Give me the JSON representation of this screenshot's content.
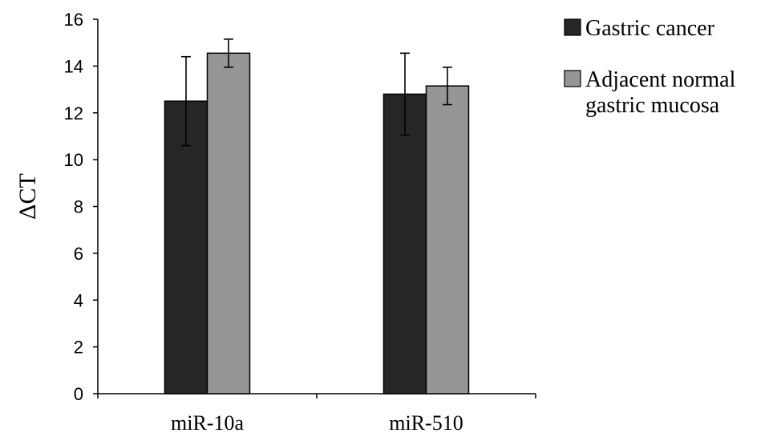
{
  "chart_data": {
    "type": "bar",
    "title": "",
    "xlabel": "",
    "ylabel": "ΔCT",
    "ylim": [
      0,
      16
    ],
    "yticks": [
      0,
      2,
      4,
      6,
      8,
      10,
      12,
      14,
      16
    ],
    "categories": [
      "miR-10a",
      "miR-510"
    ],
    "series": [
      {
        "name": "Gastric cancer",
        "color": "#262626",
        "values": [
          12.5,
          12.8
        ],
        "error": [
          1.9,
          1.75
        ]
      },
      {
        "name": "Adjacent normal gastric mucosa",
        "name_lines": [
          "Adjacent normal",
          "gastric mucosa"
        ],
        "color": "#969696",
        "values": [
          14.55,
          13.15
        ],
        "error": [
          0.6,
          0.8
        ]
      }
    ],
    "grid": false,
    "legend_position": "top-right",
    "error_bars": true
  }
}
